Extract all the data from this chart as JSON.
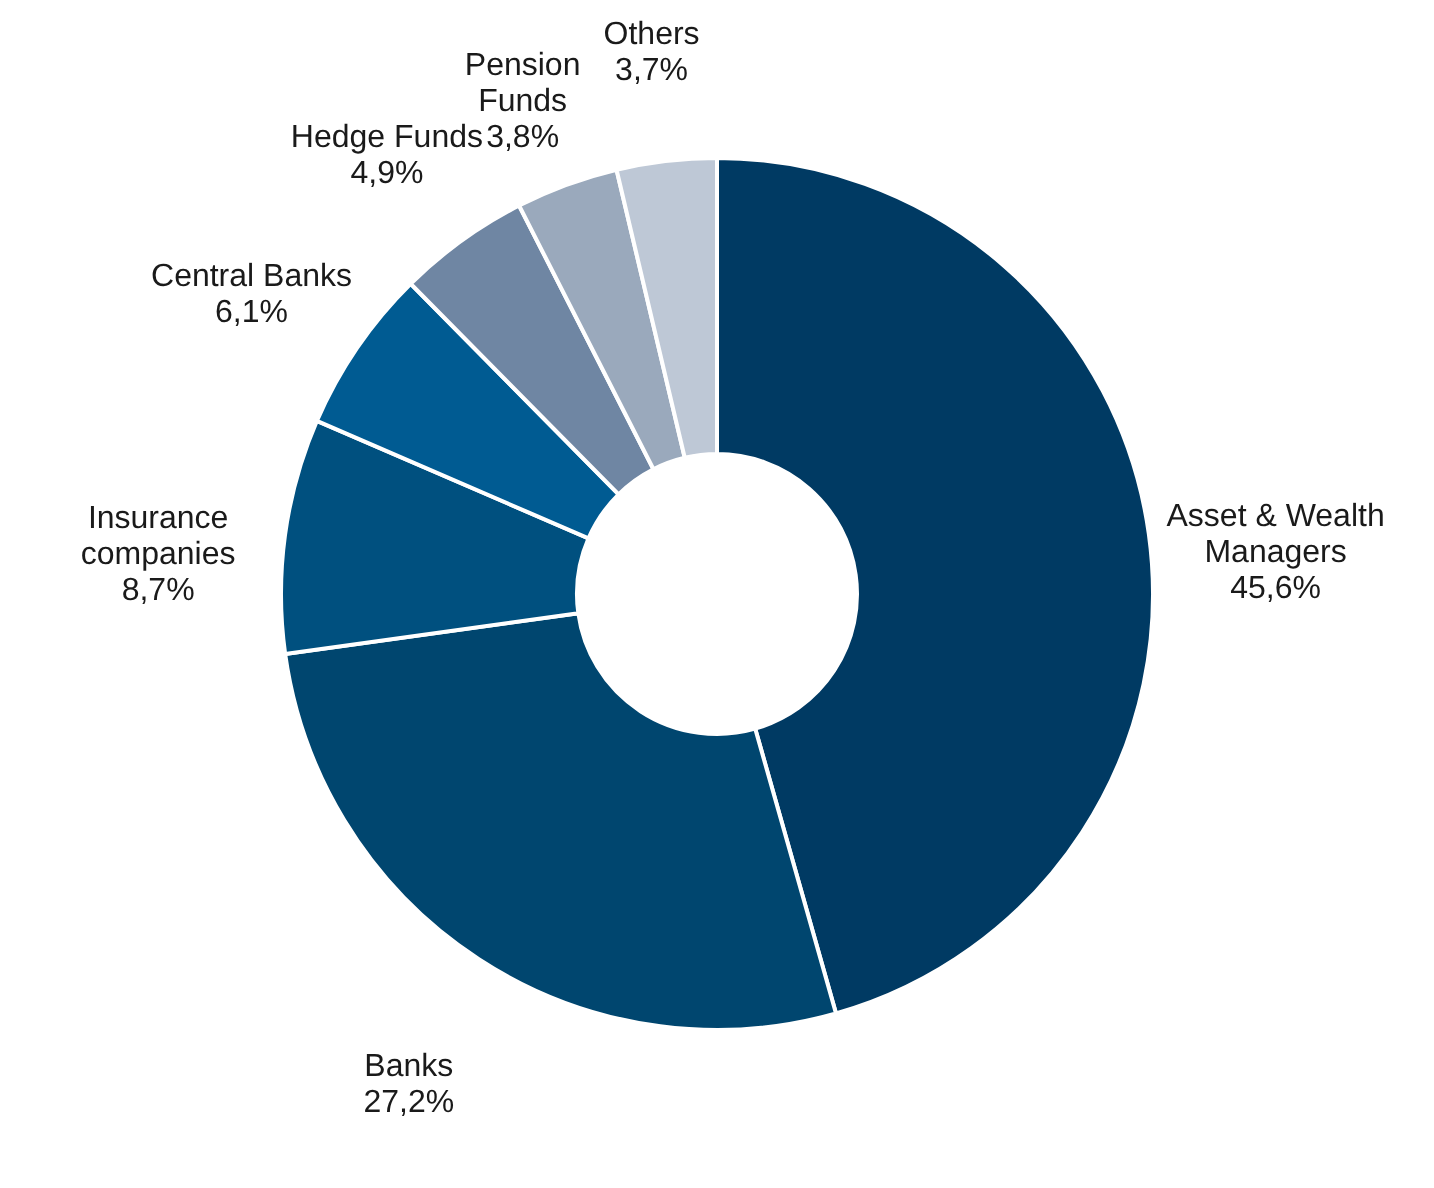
{
  "chart_data": {
    "type": "donut",
    "categories": [
      "Asset & Wealth Managers",
      "Banks",
      "Insurance companies",
      "Central Banks",
      "Hedge Funds",
      "Pension Funds",
      "Others"
    ],
    "values": [
      45.6,
      27.2,
      8.7,
      6.1,
      4.9,
      3.8,
      3.7
    ],
    "colors": [
      "#003a63",
      "#00466f",
      "#00507f",
      "#005b92",
      "#6f86a3",
      "#9aa9bc",
      "#bec8d6"
    ],
    "value_labels": [
      "45,6%",
      "27,2%",
      "8,7%",
      "6,1%",
      "4,9%",
      "3,8%",
      "3,7%"
    ]
  }
}
